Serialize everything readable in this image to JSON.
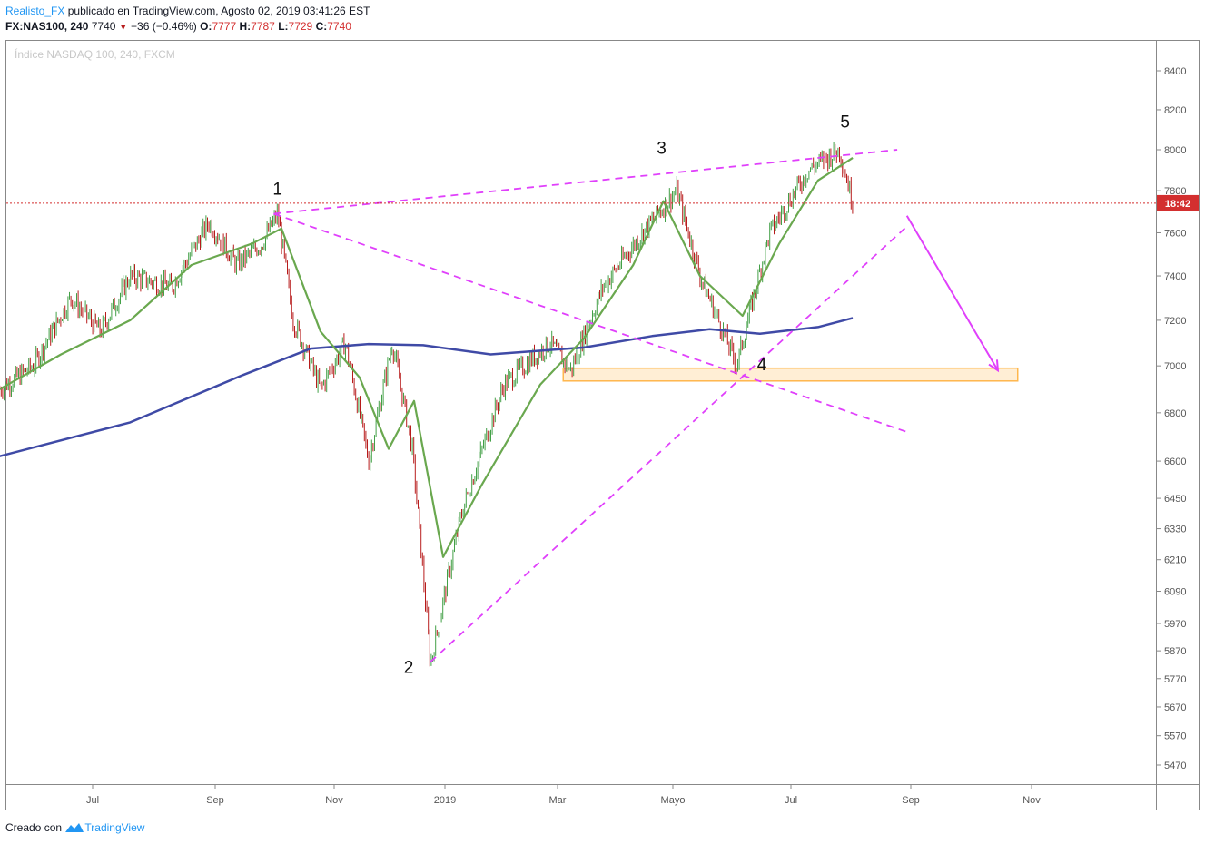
{
  "header": {
    "author": "Realisto_FX",
    "published_text": "publicado en TradingView.com, Agosto 02, 2019 03:41:26 EST",
    "symbol": "FX:NAS100, 240",
    "last": "7740",
    "change": "−36 (−0.46%)",
    "o_label": "O:",
    "o": "7777",
    "h_label": "H:",
    "h": "7787",
    "l_label": "L:",
    "l": "7729",
    "c_label": "C:",
    "c": "7740"
  },
  "footer": {
    "created_text": "Creado con",
    "brand": "TradingView"
  },
  "colors": {
    "up": "#43a047",
    "down": "#b71c1c",
    "ema_short": "#6aa84f",
    "ma_long": "#3f4aa6",
    "pattern": "#e040fb",
    "zone": "#ffb74d",
    "price_tag": "#d32f2f"
  },
  "chart_data": {
    "type": "line",
    "title": "Índice NASDAQ 100, 240, FXCM",
    "scale": "log",
    "ylim": [
      5400,
      8600
    ],
    "price_ticks": [
      8400,
      8200,
      8000,
      7800,
      7600,
      7400,
      7200,
      7000,
      6800,
      6600,
      6450,
      6330,
      6210,
      6090,
      5970,
      5870,
      5770,
      5670,
      5570,
      5470
    ],
    "time_ticks": [
      "Jul",
      "Sep",
      "Nov",
      "2019",
      "Mar",
      "Mayo",
      "Jul",
      "Sep",
      "Nov"
    ],
    "current_price_label": "18:42",
    "current_price": 7740,
    "series": [
      {
        "kind": "price",
        "x": [
          "2018-05-15",
          "2018-06-01",
          "2018-06-20",
          "2018-07-05",
          "2018-07-20",
          "2018-08-10",
          "2018-08-29",
          "2018-09-12",
          "2018-09-25",
          "2018-10-03",
          "2018-10-11",
          "2018-10-25",
          "2018-11-07",
          "2018-11-20",
          "2018-12-03",
          "2018-12-14",
          "2018-12-24",
          "2019-01-10",
          "2019-02-01",
          "2019-02-25",
          "2019-03-08",
          "2019-03-25",
          "2019-04-15",
          "2019-05-03",
          "2019-05-15",
          "2019-06-03",
          "2019-06-20",
          "2019-07-10",
          "2019-07-26",
          "2019-08-02"
        ],
        "values": [
          6900,
          7000,
          7300,
          7150,
          7400,
          7350,
          7650,
          7450,
          7550,
          7690,
          7200,
          6900,
          7100,
          6600,
          7100,
          6650,
          5820,
          6400,
          6920,
          7100,
          6980,
          7350,
          7600,
          7800,
          7400,
          7000,
          7600,
          7900,
          8000,
          7740
        ]
      },
      {
        "kind": "ema",
        "x": [
          "2018-05-15",
          "2018-06-15",
          "2018-07-20",
          "2018-08-20",
          "2018-09-20",
          "2018-10-05",
          "2018-10-25",
          "2018-11-15",
          "2018-12-01",
          "2018-12-15",
          "2018-12-31",
          "2019-01-20",
          "2019-02-20",
          "2019-03-15",
          "2019-04-10",
          "2019-04-26",
          "2019-05-15",
          "2019-06-06",
          "2019-06-25",
          "2019-07-15",
          "2019-08-02"
        ],
        "values": [
          6900,
          7050,
          7200,
          7450,
          7550,
          7620,
          7150,
          6950,
          6650,
          6850,
          6220,
          6500,
          6920,
          7120,
          7450,
          7750,
          7400,
          7220,
          7550,
          7850,
          7960
        ]
      },
      {
        "kind": "ma200",
        "x": [
          "2018-05-15",
          "2018-07-20",
          "2018-09-15",
          "2018-10-20",
          "2018-11-20",
          "2018-12-20",
          "2019-01-25",
          "2019-03-15",
          "2019-04-20",
          "2019-05-20",
          "2019-06-15",
          "2019-07-15",
          "2019-08-02"
        ],
        "values": [
          6620,
          6760,
          6960,
          7075,
          7095,
          7090,
          7050,
          7080,
          7130,
          7160,
          7140,
          7170,
          7210
        ]
      }
    ],
    "annotations": {
      "wave_labels": [
        {
          "text": "1",
          "x": "2018-10-03",
          "y": 7780
        },
        {
          "text": "2",
          "x": "2018-12-12",
          "y": 5790
        },
        {
          "text": "3",
          "x": "2019-04-25",
          "y": 7980
        },
        {
          "text": "4",
          "x": "2019-06-16",
          "y": 6980
        },
        {
          "text": "5",
          "x": "2019-07-29",
          "y": 8110
        }
      ],
      "trendlines": [
        {
          "from": [
            "2018-10-01",
            7690
          ],
          "to": [
            "2019-08-25",
            8000
          ]
        },
        {
          "from": [
            "2018-10-01",
            7690
          ],
          "to": [
            "2019-08-30",
            6720
          ]
        },
        {
          "from": [
            "2018-12-24",
            5830
          ],
          "to": [
            "2019-08-30",
            7630
          ]
        }
      ],
      "arrow": {
        "from": [
          "2019-08-30",
          7680
        ],
        "to": [
          "2019-10-15",
          6980
        ]
      },
      "zone": {
        "x_from": "2019-03-04",
        "x_to": "2019-10-25",
        "y_from": 6935,
        "y_to": 6990
      }
    }
  }
}
